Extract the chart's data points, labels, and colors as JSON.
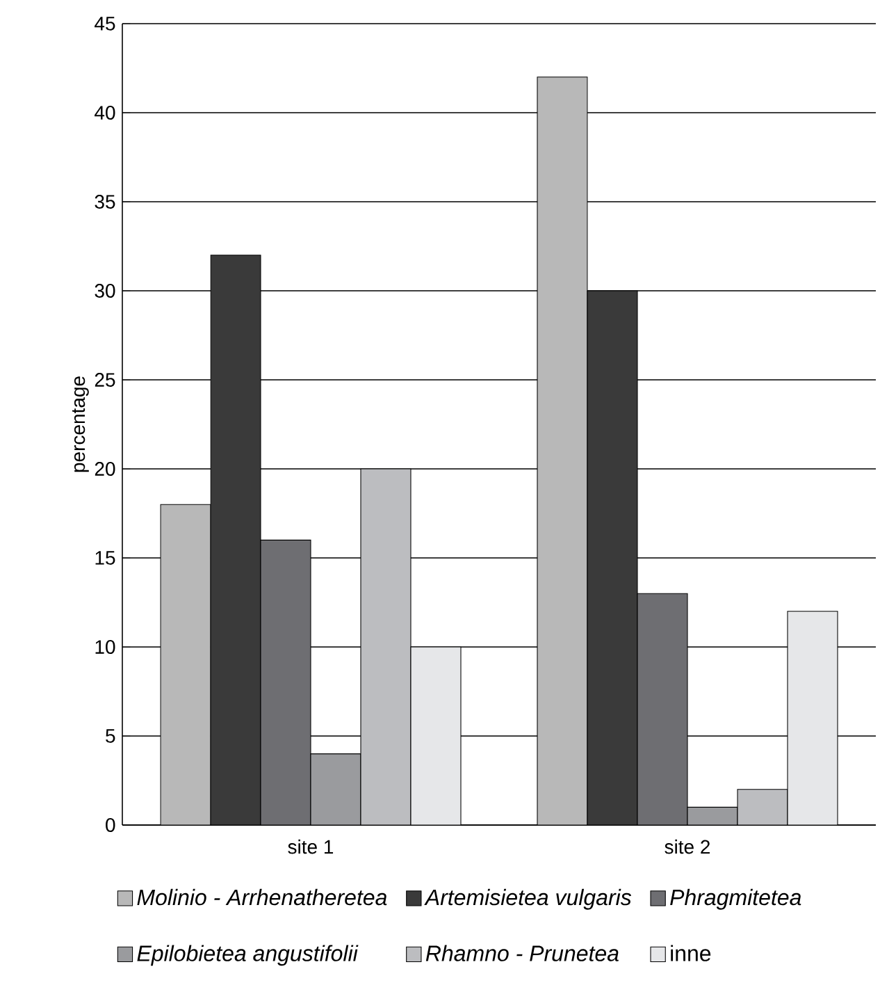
{
  "chart_data": {
    "type": "bar",
    "ylabel": "percentage",
    "categories": [
      "site 1",
      "site 2"
    ],
    "series": [
      {
        "name": "*Molinio - Arrhenatheretea*",
        "color": "#b8b8b8",
        "values": [
          18,
          42
        ]
      },
      {
        "name": "*Artemisietea vulgaris*",
        "color": "#3a3a3a",
        "values": [
          32,
          30
        ]
      },
      {
        "name": "*Phragmitetea*",
        "color": "#6e6e72",
        "values": [
          16,
          13
        ]
      },
      {
        "name": "*Epilobietea angustifolii*",
        "color": "#9a9b9e",
        "values": [
          4,
          1
        ]
      },
      {
        "name": "*Rhamno - Prunetea*",
        "color": "#bcbdc0",
        "values": [
          20,
          2
        ]
      },
      {
        "name": "inne",
        "color": "#e6e7e9",
        "values": [
          10,
          12
        ]
      }
    ],
    "ylim": [
      0,
      45
    ],
    "yticks": [
      0,
      5,
      10,
      15,
      20,
      25,
      30,
      35,
      40,
      45
    ],
    "grid": "y",
    "legend": "bottom"
  }
}
